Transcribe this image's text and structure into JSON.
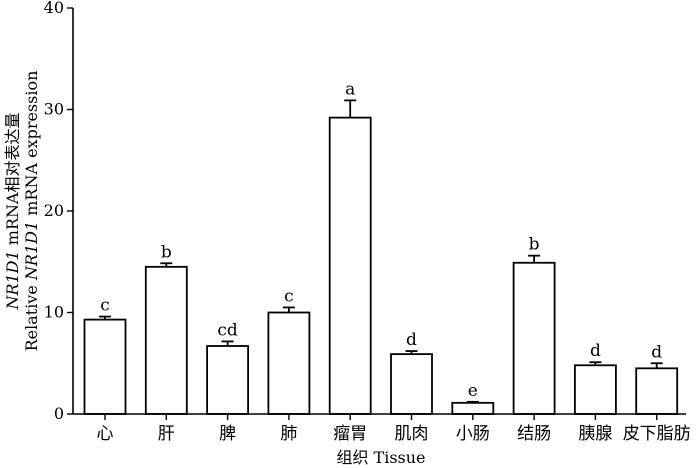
{
  "chart_data": {
    "type": "bar",
    "title": "",
    "xlabel": "组织 Tissue",
    "ylabel_cn_parts": [
      "NR1D1",
      " mRNA相对表达量"
    ],
    "ylabel_en_parts": [
      "Relative ",
      "NR1D1",
      " mRNA expression"
    ],
    "ylim": [
      0,
      40
    ],
    "yticks": [
      0,
      10,
      20,
      30,
      40
    ],
    "categories": [
      "心",
      "肝",
      "脾",
      "肺",
      "瘤胃",
      "肌肉",
      "小肠",
      "结肠",
      "胰腺",
      "皮下脂肪"
    ],
    "values": [
      9.3,
      14.5,
      6.7,
      10.0,
      29.2,
      5.9,
      1.1,
      14.9,
      4.8,
      4.5
    ],
    "errors": [
      0.3,
      0.35,
      0.45,
      0.5,
      1.7,
      0.3,
      0.1,
      0.7,
      0.3,
      0.5
    ],
    "significance": [
      "c",
      "b",
      "cd",
      "c",
      "a",
      "d",
      "e",
      "b",
      "d",
      "d"
    ],
    "grid": false
  }
}
